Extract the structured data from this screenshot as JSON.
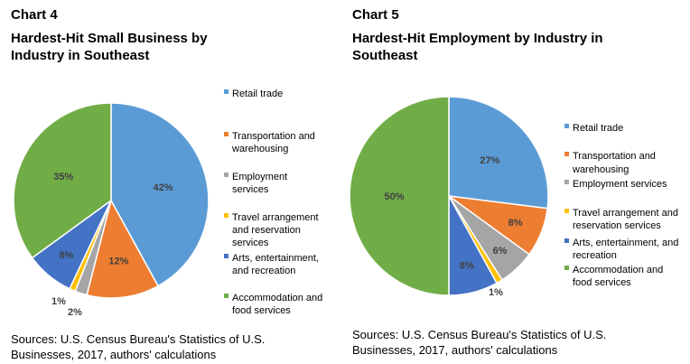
{
  "chart_data": [
    {
      "type": "pie",
      "chart_number": "Chart 4",
      "title": "Hardest-Hit Small Business by Industry in Southeast",
      "categories": [
        "Retail trade",
        "Transportation and warehousing",
        "Employment services",
        "Travel arrangement and reservation services",
        "Arts, entertainment, and recreation",
        "Accommodation and food services"
      ],
      "values": [
        42,
        12,
        2,
        1,
        8,
        35
      ],
      "data_labels": [
        "42%",
        "12%",
        "2%",
        "1%",
        "8%",
        "35%"
      ],
      "colors": [
        "#5B9BD5",
        "#ED7D31",
        "#A5A5A5",
        "#FFC000",
        "#4472C4",
        "#70AD47"
      ],
      "legend_position": "right",
      "source": "Sources: U.S. Census Bureau's Statistics of U.S. Businesses, 2017, authors' calculations"
    },
    {
      "type": "pie",
      "chart_number": "Chart 5",
      "title": "Hardest-Hit Employment by Industry in Southeast",
      "categories": [
        "Retail trade",
        "Transportation and warehousing",
        "Employment services",
        "Travel arrangement and reservation services",
        "Arts, entertainment, and recreation",
        "Accommodation and food services"
      ],
      "values": [
        27,
        8,
        6,
        1,
        8,
        50
      ],
      "data_labels": [
        "27%",
        "8%",
        "6%",
        "1%",
        "8%",
        "50%"
      ],
      "colors": [
        "#5B9BD5",
        "#ED7D31",
        "#A5A5A5",
        "#FFC000",
        "#4472C4",
        "#70AD47"
      ],
      "legend_position": "right",
      "source": "Sources: U.S. Census Bureau's Statistics of U.S. Businesses, 2017, authors' calculations"
    }
  ]
}
